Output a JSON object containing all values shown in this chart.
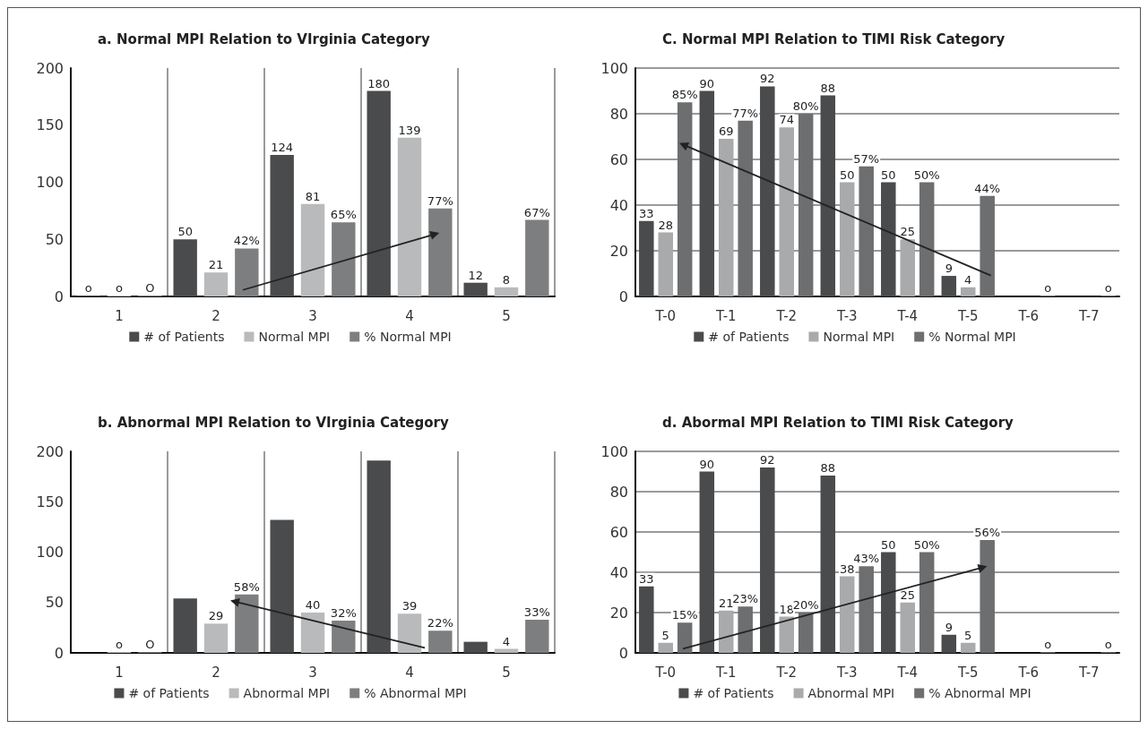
{
  "chart_data": [
    {
      "type": "bar",
      "title": "a. Normal MPI Relation to VIrginia Category",
      "categories": [
        "1",
        "2",
        "3",
        "4",
        "5"
      ],
      "ylim": [
        0,
        200
      ],
      "yticks": [
        0,
        50,
        100,
        150,
        200
      ],
      "grid": "x",
      "legend": "bottom",
      "series": [
        {
          "name": "# of Patients",
          "color": "#4a4b4d",
          "values": [
            0,
            50,
            124,
            180,
            12
          ],
          "value_labels": [
            "o",
            "50",
            "124",
            "180",
            "12"
          ]
        },
        {
          "name": "Normal MPI",
          "color": "#b9babc",
          "values": [
            0,
            21,
            81,
            139,
            8
          ],
          "value_labels": [
            "o",
            "21",
            "81",
            "139",
            "8"
          ]
        },
        {
          "name": "% Normal MPI",
          "color": "#7d7e80",
          "values": [
            0,
            42,
            65,
            77,
            67
          ],
          "value_labels": [
            "O",
            "42%",
            "65%",
            "77%",
            "67%"
          ]
        }
      ]
    },
    {
      "type": "bar",
      "title": "C. Normal MPI Relation to TIMI Risk Category",
      "categories": [
        "T-0",
        "T-1",
        "T-2",
        "T-3",
        "T-4",
        "T-5",
        "T-6",
        "T-7"
      ],
      "ylim": [
        0,
        100
      ],
      "yticks": [
        0,
        20,
        40,
        60,
        80,
        100
      ],
      "grid": "y",
      "legend": "bottom",
      "series": [
        {
          "name": "# of Patients",
          "color": "#4a4b4d",
          "values": [
            33,
            90,
            92,
            88,
            50,
            9,
            null,
            null
          ],
          "value_labels": [
            "33",
            "90",
            "92",
            "88",
            "50",
            "9",
            null,
            null
          ]
        },
        {
          "name": "Normal MPI",
          "color": "#a9aaac",
          "values": [
            28,
            69,
            74,
            50,
            25,
            4,
            null,
            null
          ],
          "value_labels": [
            "28",
            "69",
            "74",
            "50",
            "25",
            "4",
            null,
            null
          ]
        },
        {
          "name": "% Normal MPI",
          "color": "#6d6e70",
          "values": [
            85,
            77,
            80,
            57,
            50,
            44,
            0,
            0
          ],
          "value_labels": [
            "85%",
            "77%",
            "80%",
            "57%",
            "50%",
            "44%",
            "o",
            "o"
          ]
        }
      ]
    },
    {
      "type": "bar",
      "title": "b. Abnormal MPI Relation to VIrginia Category",
      "categories": [
        "1",
        "2",
        "3",
        "4",
        "5"
      ],
      "ylim": [
        0,
        200
      ],
      "yticks": [
        0,
        50,
        100,
        150,
        200
      ],
      "grid": "x",
      "legend": "bottom",
      "series": [
        {
          "name": "# of Patients",
          "color": "#4a4b4d",
          "values": [
            null,
            54,
            132,
            191,
            11
          ],
          "value_labels": [
            null,
            null,
            null,
            null,
            null
          ]
        },
        {
          "name": "Abnormal MPI",
          "color": "#b9babc",
          "values": [
            0,
            29,
            40,
            39,
            4
          ],
          "value_labels": [
            "o",
            "29",
            "40",
            "39",
            "4"
          ]
        },
        {
          "name": "% Abnormal MPI",
          "color": "#7d7e80",
          "values": [
            0,
            58,
            32,
            22,
            33
          ],
          "value_labels": [
            "O",
            "58%",
            "32%",
            "22%",
            "33%"
          ]
        }
      ]
    },
    {
      "type": "bar",
      "title": "d. Abormal MPI Relation to TIMI Risk Category",
      "categories": [
        "T-0",
        "T-1",
        "T-2",
        "T-3",
        "T-4",
        "T-5",
        "T-6",
        "T-7"
      ],
      "ylim": [
        0,
        100
      ],
      "yticks": [
        0,
        20,
        40,
        60,
        80,
        100
      ],
      "grid": "y",
      "legend": "bottom",
      "series": [
        {
          "name": "# of Patients",
          "color": "#4a4b4d",
          "values": [
            33,
            90,
            92,
            88,
            50,
            9,
            null,
            null
          ],
          "value_labels": [
            "33",
            "90",
            "92",
            "88",
            "50",
            "9",
            null,
            null
          ]
        },
        {
          "name": "Abnormal MPI",
          "color": "#a9aaac",
          "values": [
            5,
            21,
            18,
            38,
            25,
            5,
            null,
            null
          ],
          "value_labels": [
            "5",
            "21",
            "18",
            "38",
            "25",
            "5",
            null,
            null
          ]
        },
        {
          "name": "% Abnormal MPI",
          "color": "#6d6e70",
          "values": [
            15,
            23,
            20,
            43,
            50,
            56,
            0,
            0
          ],
          "value_labels": [
            "15%",
            "23%",
            "20%",
            "43%",
            "50%",
            "56%",
            "o",
            "o"
          ]
        }
      ]
    }
  ]
}
